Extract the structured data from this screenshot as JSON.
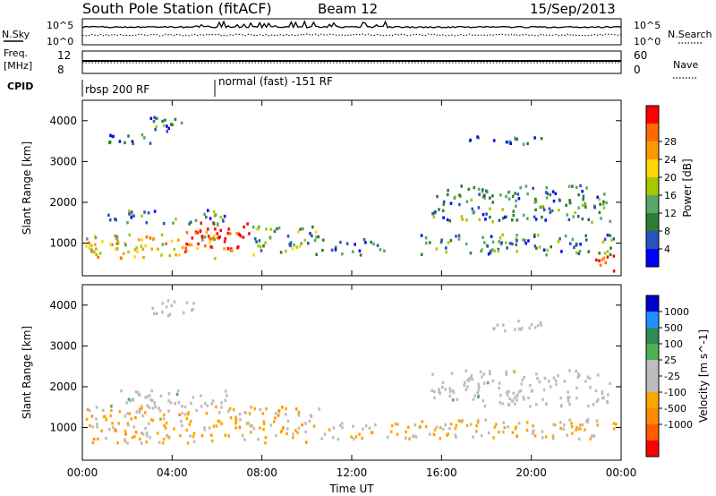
{
  "header": {
    "station": "South Pole Station (fitACF)",
    "beam": "Beam 12",
    "date": "15/Sep/2013"
  },
  "strips": {
    "nsky_label": "N.Sky",
    "nsky_ticks": [
      "10^5",
      "10^0"
    ],
    "nsearch_label": "N.Search",
    "nsearch_ticks": [
      "10^5",
      "10^0"
    ],
    "freq_label": "Freq.",
    "freq_unit": "[MHz]",
    "freq_ticks": [
      "12",
      "8"
    ],
    "nave_label": "Nave",
    "nave_ticks": [
      "60",
      "0"
    ],
    "cpid_label": "CPID",
    "cpid_segments": [
      "rbsp 200 RF",
      "normal (fast) -151 RF"
    ]
  },
  "colors": {
    "power_scale": [
      "#0000ff",
      "#2a52be",
      "#2e7d32",
      "#55a868",
      "#a8c800",
      "#ffd700",
      "#ff9900",
      "#ff6a00",
      "#ff0000"
    ],
    "velocity_scale": [
      "#ff0000",
      "#ff5a00",
      "#ff8c00",
      "#ffa500",
      "#bdbdbd",
      "#bdbdbd",
      "#4caf50",
      "#2e8b57",
      "#1e90ff",
      "#0000cd"
    ]
  },
  "chart_data": [
    {
      "type": "heatmap",
      "panel": "power",
      "ylabel": "Slant Range [km]",
      "yticks": [
        "1000",
        "2000",
        "3000",
        "4000"
      ],
      "ylim": [
        200,
        4500
      ],
      "xlim": [
        "00:00",
        "24:00"
      ],
      "colorbar": {
        "label": "Power [dB]",
        "ticks": [
          "4",
          "8",
          "12",
          "16",
          "20",
          "24",
          "28"
        ],
        "range": [
          0,
          30
        ]
      },
      "regions": [
        {
          "t0": 0.0,
          "t1": 6.0,
          "r0": 600,
          "r1": 1200,
          "level": 0.6
        },
        {
          "t0": 4.5,
          "t1": 7.5,
          "r0": 750,
          "r1": 1500,
          "level": 0.95
        },
        {
          "t0": 7.5,
          "t1": 10.5,
          "r0": 700,
          "r1": 1400,
          "level": 0.35
        },
        {
          "t0": 10.5,
          "t1": 13.5,
          "r0": 700,
          "r1": 1100,
          "level": 0.2
        },
        {
          "t0": 1.0,
          "t1": 6.5,
          "r0": 1450,
          "r1": 1800,
          "level": 0.3
        },
        {
          "t0": 3.0,
          "t1": 4.5,
          "r0": 3700,
          "r1": 4100,
          "level": 0.25
        },
        {
          "t0": 1.0,
          "t1": 3.0,
          "r0": 3400,
          "r1": 3650,
          "level": 0.2
        },
        {
          "t0": 15.5,
          "t1": 23.5,
          "r0": 1500,
          "r1": 2400,
          "level": 0.3
        },
        {
          "t0": 15.0,
          "t1": 23.8,
          "r0": 700,
          "r1": 1200,
          "level": 0.3
        },
        {
          "t0": 17.2,
          "t1": 20.6,
          "r0": 3400,
          "r1": 3600,
          "level": 0.2
        },
        {
          "t0": 22.5,
          "t1": 23.9,
          "r0": 300,
          "r1": 700,
          "level": 0.9
        }
      ]
    },
    {
      "type": "heatmap",
      "panel": "velocity",
      "ylabel": "Slant Range [km]",
      "yticks": [
        "1000",
        "2000",
        "3000",
        "4000"
      ],
      "ylim": [
        200,
        4500
      ],
      "xlim": [
        "00:00",
        "24:00"
      ],
      "xticks": [
        "00:00",
        "04:00",
        "08:00",
        "12:00",
        "16:00",
        "20:00",
        "00:00"
      ],
      "xlabel": "Time UT",
      "colorbar": {
        "label": "Velocity [m s^-1]",
        "ticks": [
          "1000",
          "500",
          "100",
          "25",
          "-25",
          "-100",
          "-500",
          "-1000"
        ],
        "range": [
          -1200,
          1200
        ]
      },
      "regions": [
        {
          "t0": 0.0,
          "t1": 10.5,
          "r0": 600,
          "r1": 1500,
          "velocity": -300
        },
        {
          "t0": 10.5,
          "t1": 15.0,
          "r0": 700,
          "r1": 1100,
          "velocity": -200
        },
        {
          "t0": 1.0,
          "t1": 6.5,
          "r0": 1450,
          "r1": 1900,
          "velocity": 15
        },
        {
          "t0": 15.5,
          "t1": 23.5,
          "r0": 1500,
          "r1": 2400,
          "velocity": 5
        },
        {
          "t0": 15.0,
          "t1": 23.8,
          "r0": 700,
          "r1": 1200,
          "velocity": -250
        },
        {
          "t0": 17.2,
          "t1": 20.6,
          "r0": 3350,
          "r1": 3600,
          "velocity": -10
        },
        {
          "t0": 3.0,
          "t1": 5.0,
          "r0": 3700,
          "r1": 4100,
          "velocity": 0
        }
      ]
    }
  ]
}
